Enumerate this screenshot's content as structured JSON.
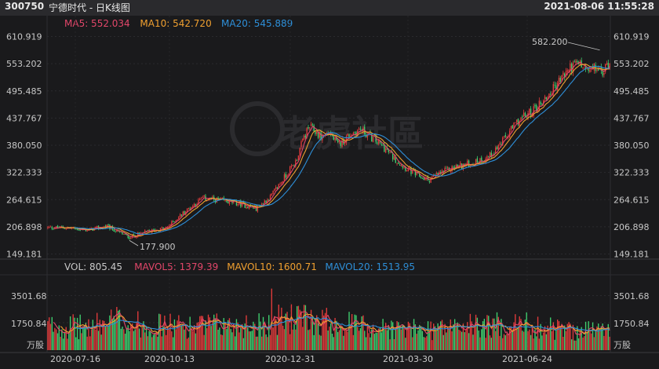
{
  "header": {
    "code": "300750",
    "name": "宁德时代 - 日K线图",
    "datetime": "2021-08-06 11:55:28"
  },
  "watermark": "老虎社區",
  "ma_legend": [
    {
      "label": "MA5: 552.034",
      "color": "#e2476a"
    },
    {
      "label": "MA10: 542.720",
      "color": "#f0a030"
    },
    {
      "label": "MA20: 545.889",
      "color": "#2e8fd8"
    }
  ],
  "vol_legend": [
    {
      "label": "VOL: 805.45",
      "color": "#c8c8c8"
    },
    {
      "label": "MAVOL5: 1379.39",
      "color": "#e2476a"
    },
    {
      "label": "MAVOL10: 1600.71",
      "color": "#f0a030"
    },
    {
      "label": "MAVOL20: 1513.95",
      "color": "#2e8fd8"
    }
  ],
  "price_ticks": [
    "610.919",
    "553.202",
    "495.485",
    "437.767",
    "380.050",
    "322.333",
    "264.615",
    "206.898",
    "149.181"
  ],
  "vol_ticks": [
    "3501.68",
    "1750.84",
    "万股"
  ],
  "date_ticks": [
    "2020-07-16",
    "2020-10-13",
    "2020-12-31",
    "2021-03-30",
    "2021-06-24"
  ],
  "annotations": {
    "high": "582.200",
    "low": "177.900"
  },
  "colors": {
    "up": "#e23b3b",
    "down": "#3fcf6f",
    "ma5": "#e2476a",
    "ma10": "#f0a030",
    "ma20": "#2e8fd8"
  },
  "chart_data": {
    "type": "candlestick",
    "y_range": [
      149.181,
      610.919
    ],
    "vol_range": [
      0,
      3501.68
    ],
    "price_path": [
      [
        0,
        205
      ],
      [
        14,
        205
      ],
      [
        28,
        200
      ],
      [
        42,
        208
      ],
      [
        50,
        196
      ],
      [
        58,
        185
      ],
      [
        70,
        196
      ],
      [
        84,
        204
      ],
      [
        96,
        236
      ],
      [
        110,
        268
      ],
      [
        124,
        262
      ],
      [
        136,
        256
      ],
      [
        148,
        246
      ],
      [
        158,
        270
      ],
      [
        168,
        312
      ],
      [
        176,
        345
      ],
      [
        182,
        398
      ],
      [
        186,
        420
      ],
      [
        194,
        398
      ],
      [
        200,
        408
      ],
      [
        206,
        380
      ],
      [
        214,
        402
      ],
      [
        222,
        414
      ],
      [
        230,
        396
      ],
      [
        238,
        378
      ],
      [
        246,
        352
      ],
      [
        256,
        328
      ],
      [
        262,
        316
      ],
      [
        270,
        306
      ],
      [
        278,
        320
      ],
      [
        290,
        335
      ],
      [
        302,
        342
      ],
      [
        314,
        358
      ],
      [
        324,
        392
      ],
      [
        334,
        432
      ],
      [
        344,
        452
      ],
      [
        356,
        488
      ],
      [
        364,
        520
      ],
      [
        372,
        548
      ],
      [
        378,
        552
      ],
      [
        384,
        536
      ],
      [
        390,
        545
      ],
      [
        394,
        530
      ],
      [
        398,
        558
      ]
    ],
    "volume_profile": [
      [
        0,
        1600
      ],
      [
        30,
        1500
      ],
      [
        50,
        2000
      ],
      [
        60,
        1700
      ],
      [
        100,
        1550
      ],
      [
        150,
        1700
      ],
      [
        170,
        2100
      ],
      [
        200,
        1900
      ],
      [
        230,
        1500
      ],
      [
        260,
        1350
      ],
      [
        300,
        1600
      ],
      [
        340,
        1650
      ],
      [
        370,
        1300
      ],
      [
        400,
        1350
      ]
    ],
    "ma5_last": 552.034,
    "ma10_last": 542.72,
    "ma20_last": 545.889,
    "vol_last": 805.45,
    "mavol5_last": 1379.39,
    "mavol10_last": 1600.71,
    "mavol20_last": 1513.95
  }
}
